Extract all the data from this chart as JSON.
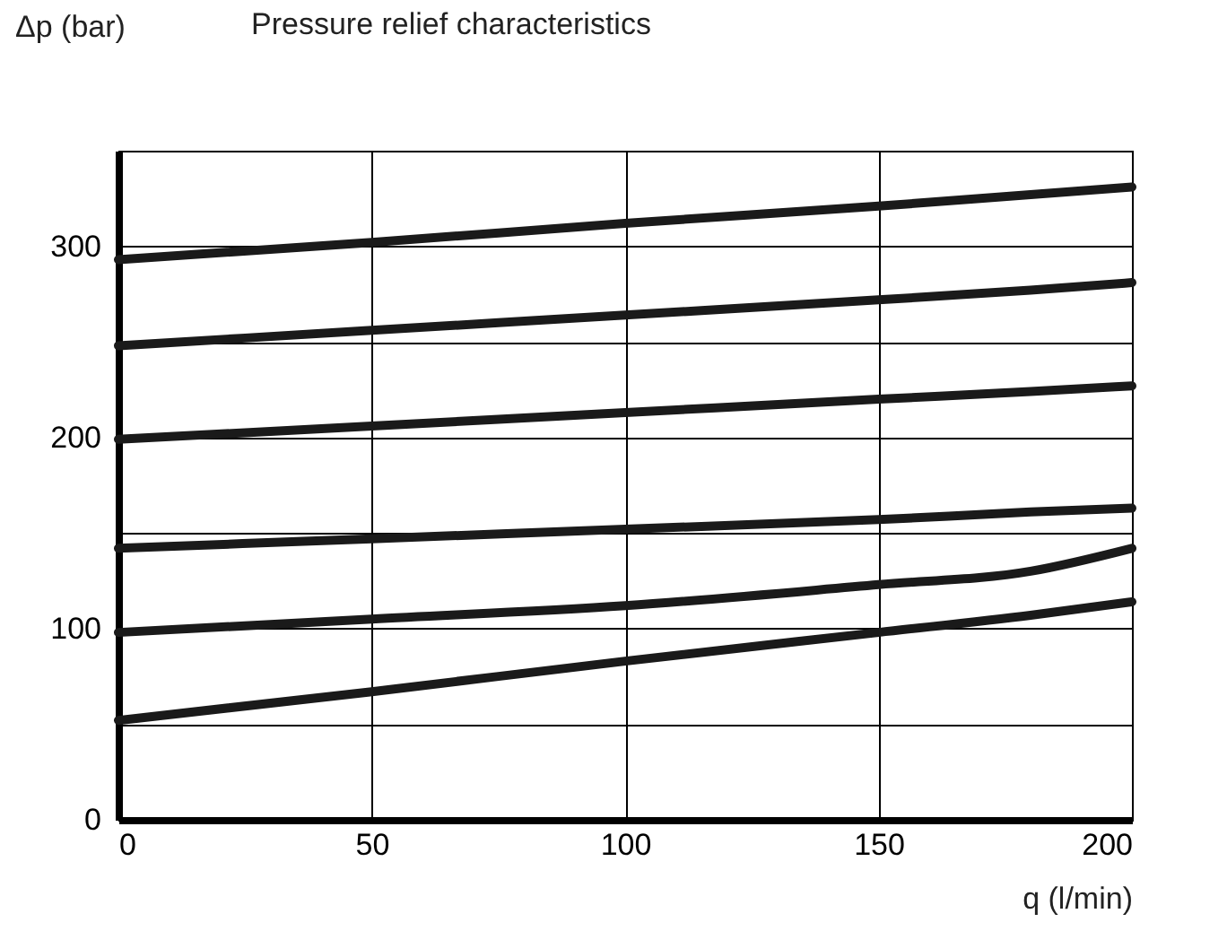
{
  "chart_data": {
    "type": "line",
    "title": "Pressure relief characteristics",
    "xlabel": "q (l/min)",
    "ylabel": "Δp (bar)",
    "x": [
      0,
      50,
      100,
      150,
      180,
      200
    ],
    "series": [
      {
        "color": "#1a1a1a",
        "values": [
          293,
          302,
          312,
          321,
          327,
          331
        ]
      },
      {
        "color": "#1a1a1a",
        "values": [
          248,
          256,
          264,
          272,
          277,
          281
        ]
      },
      {
        "color": "#1a1a1a",
        "values": [
          199,
          206,
          213,
          220,
          224,
          227
        ]
      },
      {
        "color": "#1a1a1a",
        "values": [
          142,
          147,
          152,
          157,
          161,
          163
        ]
      },
      {
        "color": "#1a1a1a",
        "values": [
          98,
          105,
          112,
          123,
          130,
          142
        ]
      },
      {
        "color": "#1a1a1a",
        "values": [
          52,
          67,
          83,
          98,
          107,
          114
        ]
      }
    ],
    "xlim": [
      0,
      200
    ],
    "xticks": [
      0,
      50,
      100,
      150,
      200
    ],
    "ylim": [
      0,
      350
    ],
    "yticks": [
      0,
      {
        "value": 50,
        "label": null
      },
      100,
      {
        "value": 150,
        "label": null
      },
      200,
      {
        "value": 250,
        "label": null
      },
      300,
      {
        "value": 350,
        "label": null
      }
    ],
    "grid": true
  }
}
